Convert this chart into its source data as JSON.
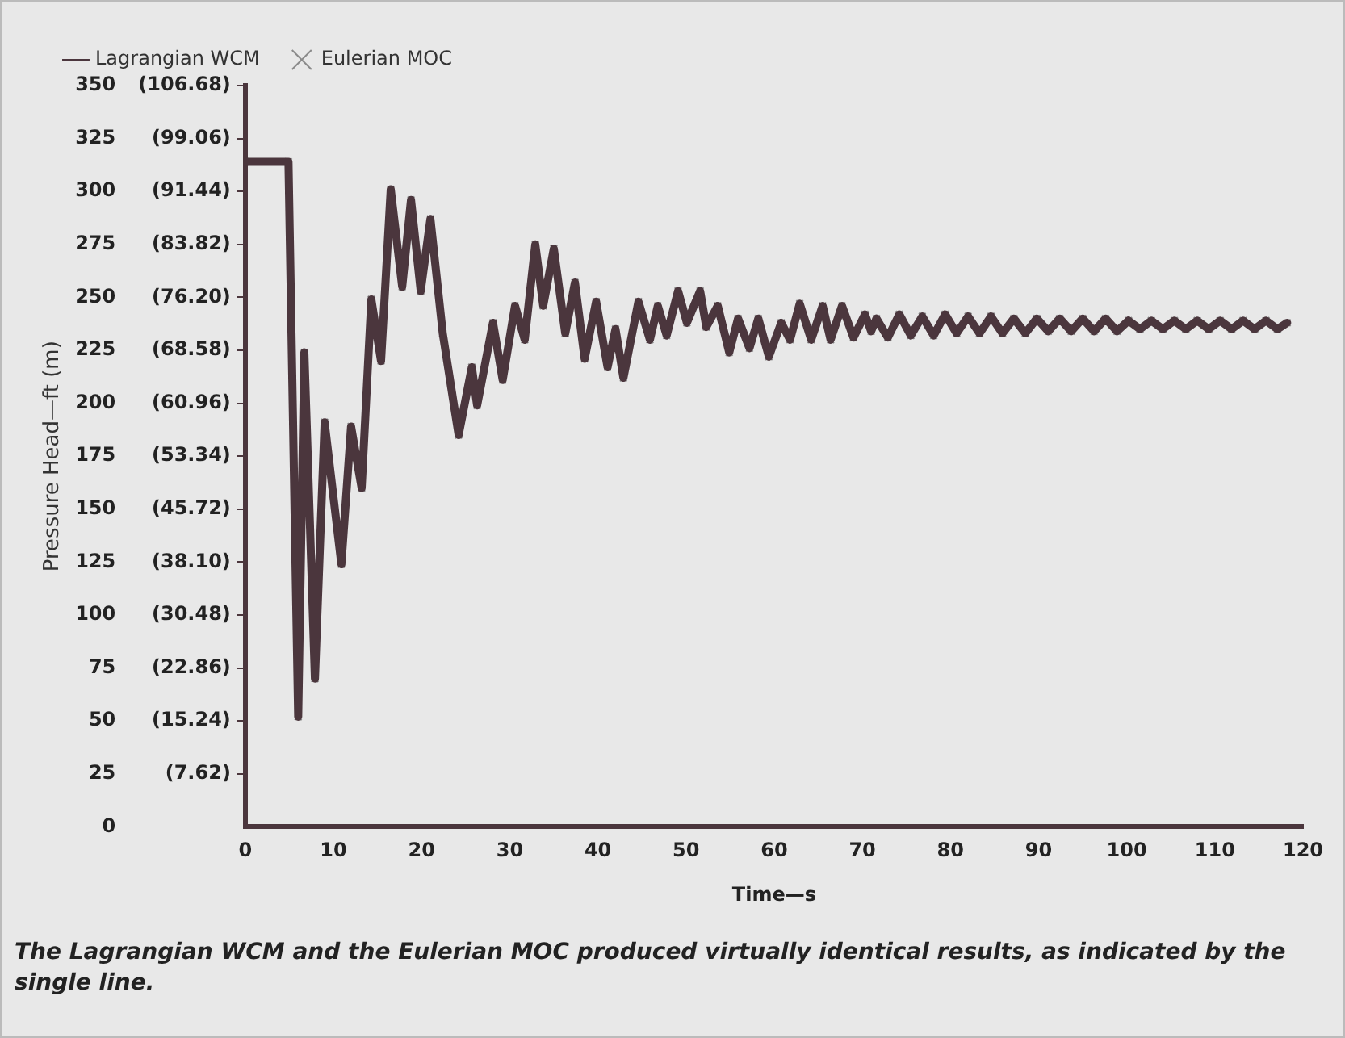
{
  "chart_data": {
    "type": "line",
    "xlabel": "Time—s",
    "ylabel": "Pressure Head—ft (m)",
    "xlim": [
      0,
      120
    ],
    "xticks": [
      0,
      10,
      20,
      30,
      40,
      50,
      60,
      70,
      80,
      90,
      100,
      110,
      120
    ],
    "ylim": [
      0,
      350
    ],
    "yticks": [
      0,
      25,
      50,
      75,
      100,
      125,
      150,
      175,
      200,
      225,
      250,
      275,
      300,
      325,
      350
    ],
    "y2lim": [
      0,
      106.68
    ],
    "y2ticks": [
      {
        "value": 7.62,
        "label": "(7.62)"
      },
      {
        "value": 15.24,
        "label": "(15.24)"
      },
      {
        "value": 22.86,
        "label": "(22.86)"
      },
      {
        "value": 30.48,
        "label": "(30.48)"
      },
      {
        "value": 38.1,
        "label": "(38.10)"
      },
      {
        "value": 45.72,
        "label": "(45.72)"
      },
      {
        "value": 53.34,
        "label": "(53.34)"
      },
      {
        "value": 60.96,
        "label": "(60.96)"
      },
      {
        "value": 68.58,
        "label": "(68.58)"
      },
      {
        "value": 76.2,
        "label": "(76.20)"
      },
      {
        "value": 83.82,
        "label": "(83.82)"
      },
      {
        "value": 91.44,
        "label": "(91.44)"
      },
      {
        "value": 99.06,
        "label": "(99.06)"
      },
      {
        "value": 106.68,
        "label": "(106.68)"
      }
    ],
    "grid": false,
    "legend": "top left",
    "x": [
      0,
      4.9,
      6.0,
      6.7,
      7.9,
      9.0,
      10.9,
      12.0,
      13.2,
      14.3,
      15.4,
      16.5,
      17.8,
      18.8,
      19.9,
      21.0,
      22.4,
      24.2,
      25.7,
      26.3,
      28.1,
      29.2,
      30.6,
      31.7,
      32.9,
      33.8,
      35.0,
      36.3,
      37.4,
      38.5,
      39.8,
      41.1,
      42.0,
      42.9,
      44.6,
      45.9,
      46.8,
      47.8,
      49.1,
      50.1,
      51.6,
      52.3,
      53.6,
      54.9,
      55.9,
      57.2,
      58.2,
      59.4,
      60.8,
      61.8,
      62.9,
      64.2,
      65.5,
      66.4,
      67.7,
      69.0,
      70.3,
      71.0,
      71.6,
      72.9,
      74.2,
      75.5,
      76.8,
      78.1,
      79.4,
      80.7,
      82.0,
      83.3,
      84.6,
      85.9,
      87.2,
      88.5,
      89.8,
      91.1,
      92.4,
      93.7,
      95.0,
      96.3,
      97.6,
      98.9,
      100.2,
      101.5,
      102.8,
      104.1,
      105.4,
      106.7,
      108.0,
      109.3,
      110.6,
      111.9,
      113.2,
      114.5,
      115.8,
      117.1,
      118.2
    ],
    "series": [
      {
        "name": "Eulerian MOC",
        "type": "scatter",
        "marker": "cross",
        "color": "#8a8a8a",
        "values": [
          314,
          314,
          52,
          224,
          70,
          191,
          124,
          189,
          160,
          249,
          220,
          301,
          255,
          296,
          253,
          287,
          233,
          185,
          217,
          199,
          238,
          211,
          246,
          230,
          275,
          246,
          273,
          233,
          257,
          221,
          248,
          217,
          235,
          212,
          248,
          230,
          246,
          232,
          253,
          238,
          253,
          236,
          246,
          224,
          240,
          226,
          240,
          222,
          238,
          230,
          247,
          230,
          246,
          230,
          246,
          231,
          242,
          234,
          240,
          231,
          242,
          232,
          241,
          232,
          242,
          233,
          241,
          233,
          241,
          233,
          240,
          233,
          240,
          234,
          240,
          234,
          240,
          234,
          240,
          234,
          239,
          235,
          239,
          235,
          239,
          235,
          239,
          235,
          239,
          235,
          239,
          235,
          239,
          235,
          238
        ]
      },
      {
        "name": "Lagrangian WCM",
        "type": "line",
        "marker": "none",
        "line_style": "solid",
        "color": "#4b363d",
        "values": [
          314,
          314,
          52,
          224,
          70,
          191,
          124,
          189,
          160,
          249,
          220,
          301,
          255,
          296,
          253,
          287,
          233,
          185,
          217,
          199,
          238,
          211,
          246,
          230,
          275,
          246,
          273,
          233,
          257,
          221,
          248,
          217,
          235,
          212,
          248,
          230,
          246,
          232,
          253,
          238,
          253,
          236,
          246,
          224,
          240,
          226,
          240,
          222,
          238,
          230,
          247,
          230,
          246,
          230,
          246,
          231,
          242,
          234,
          240,
          231,
          242,
          232,
          241,
          232,
          242,
          233,
          241,
          233,
          241,
          233,
          240,
          233,
          240,
          234,
          240,
          234,
          240,
          234,
          240,
          234,
          239,
          235,
          239,
          235,
          239,
          235,
          239,
          235,
          239,
          235,
          239,
          235,
          239,
          235,
          238
        ]
      }
    ],
    "annotations": [
      "The Lagrangian WCM and the Eulerian MOC produced virtually identical results, as indicated by the single line."
    ]
  }
}
